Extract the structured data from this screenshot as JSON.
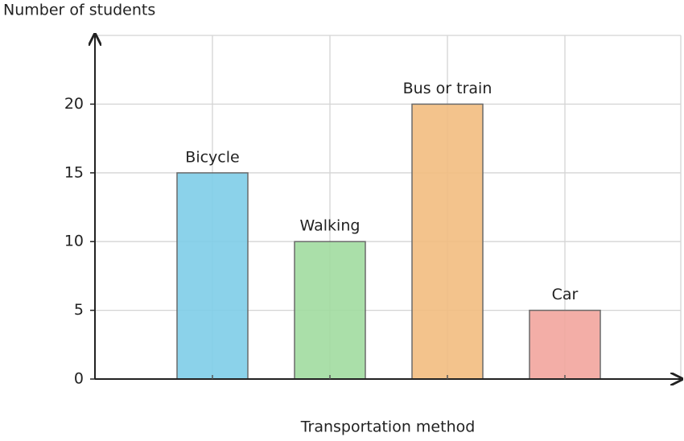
{
  "chart_data": {
    "type": "bar",
    "x_label": "Transportation method",
    "y_label": "Number of students",
    "categories": [
      "Bicycle",
      "Walking",
      "Bus or train",
      "Car"
    ],
    "values": [
      15,
      10,
      20,
      5
    ],
    "colors": [
      "#7ecde8",
      "#a1dba0",
      "#f2bd80",
      "#f2a59d"
    ],
    "ylim": [
      0,
      25
    ],
    "yticks": [
      0,
      5,
      10,
      15,
      20
    ],
    "grid": true
  }
}
